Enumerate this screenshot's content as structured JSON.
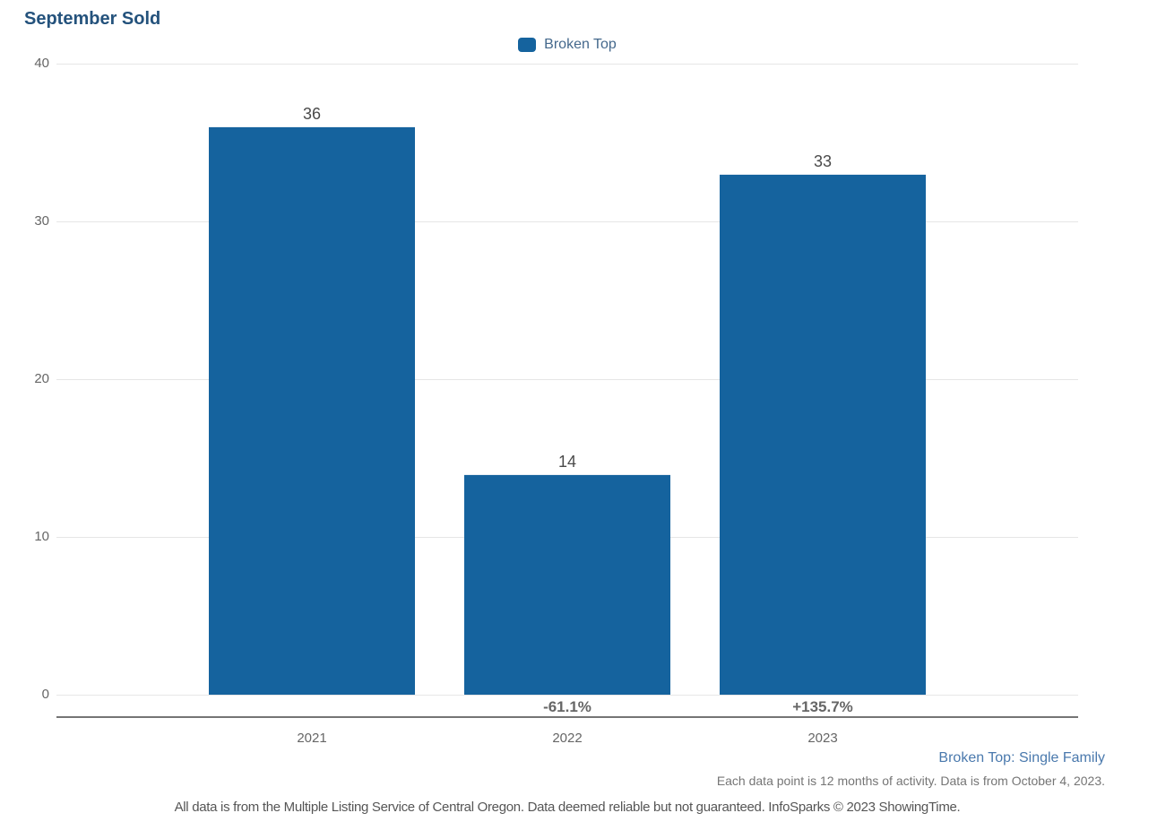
{
  "title": "September Sold",
  "legend": {
    "items": [
      {
        "label": "Broken Top",
        "color": "#15639e"
      }
    ]
  },
  "chart_data": {
    "type": "bar",
    "title": "September Sold",
    "categories": [
      "2021",
      "2022",
      "2023"
    ],
    "series": [
      {
        "name": "Broken Top",
        "values": [
          36,
          14,
          33
        ],
        "color": "#15639e"
      }
    ],
    "value_labels": [
      "36",
      "14",
      "33"
    ],
    "pct_change_labels": [
      "",
      "-61.1%",
      "+135.7%"
    ],
    "ylim": [
      0,
      40
    ],
    "yticks": [
      0,
      10,
      20,
      30,
      40
    ],
    "grid": true,
    "legend_position": "top-center"
  },
  "footnotes": {
    "series_note": "Broken Top: Single Family",
    "data_note": "Each data point is 12 months of activity. Data is from October 4, 2023.",
    "disclaimer": "All data is from the Multiple Listing Service of Central Oregon. Data deemed reliable but not guaranteed. InfoSparks © 2023 ShowingTime."
  },
  "colors": {
    "title": "#24527c",
    "bar": "#15639e",
    "legend_text": "#44688c",
    "axis_text": "#666666",
    "value_text": "#4a4a4a",
    "pct_text": "#666666",
    "gridline": "#e6e6e6",
    "axis_line": "#757575",
    "series_note_text": "#4a79ad",
    "footnote_text": "#757575"
  }
}
